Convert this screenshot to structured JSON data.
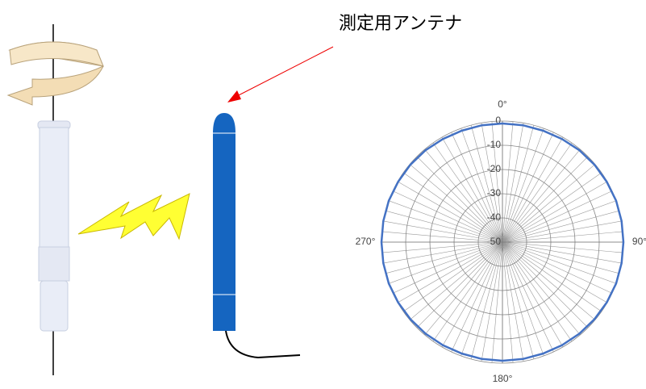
{
  "annotation": "測定用アンテナ",
  "chart_data": {
    "type": "polar",
    "rlim": [
      -50,
      0
    ],
    "rticks": [
      0,
      -10,
      -20,
      -30,
      -40,
      -50
    ],
    "thetaticks": [
      {
        "value": 0,
        "label": "0°"
      },
      {
        "value": 90,
        "label": "90°"
      },
      {
        "value": 180,
        "label": "180°"
      },
      {
        "value": 270,
        "label": "270°"
      }
    ],
    "grid": true,
    "color": "#4472c4",
    "theta": [
      0,
      10,
      20,
      30,
      40,
      50,
      60,
      70,
      80,
      90,
      100,
      110,
      120,
      130,
      140,
      150,
      160,
      170,
      180,
      190,
      200,
      210,
      220,
      230,
      240,
      250,
      260,
      270,
      280,
      290,
      300,
      310,
      320,
      330,
      340,
      350
    ],
    "values": [
      -1,
      -1,
      -1,
      -0.8,
      -0.5,
      -0.3,
      -0.2,
      0,
      0,
      0,
      0,
      0,
      -0.2,
      -0.4,
      -0.6,
      -0.8,
      -1,
      -1,
      -1,
      -1,
      -1,
      -0.8,
      -0.6,
      -0.4,
      -0.2,
      0,
      0,
      0,
      0,
      0,
      -0.2,
      -0.3,
      -0.5,
      -0.8,
      -1,
      -1
    ]
  }
}
